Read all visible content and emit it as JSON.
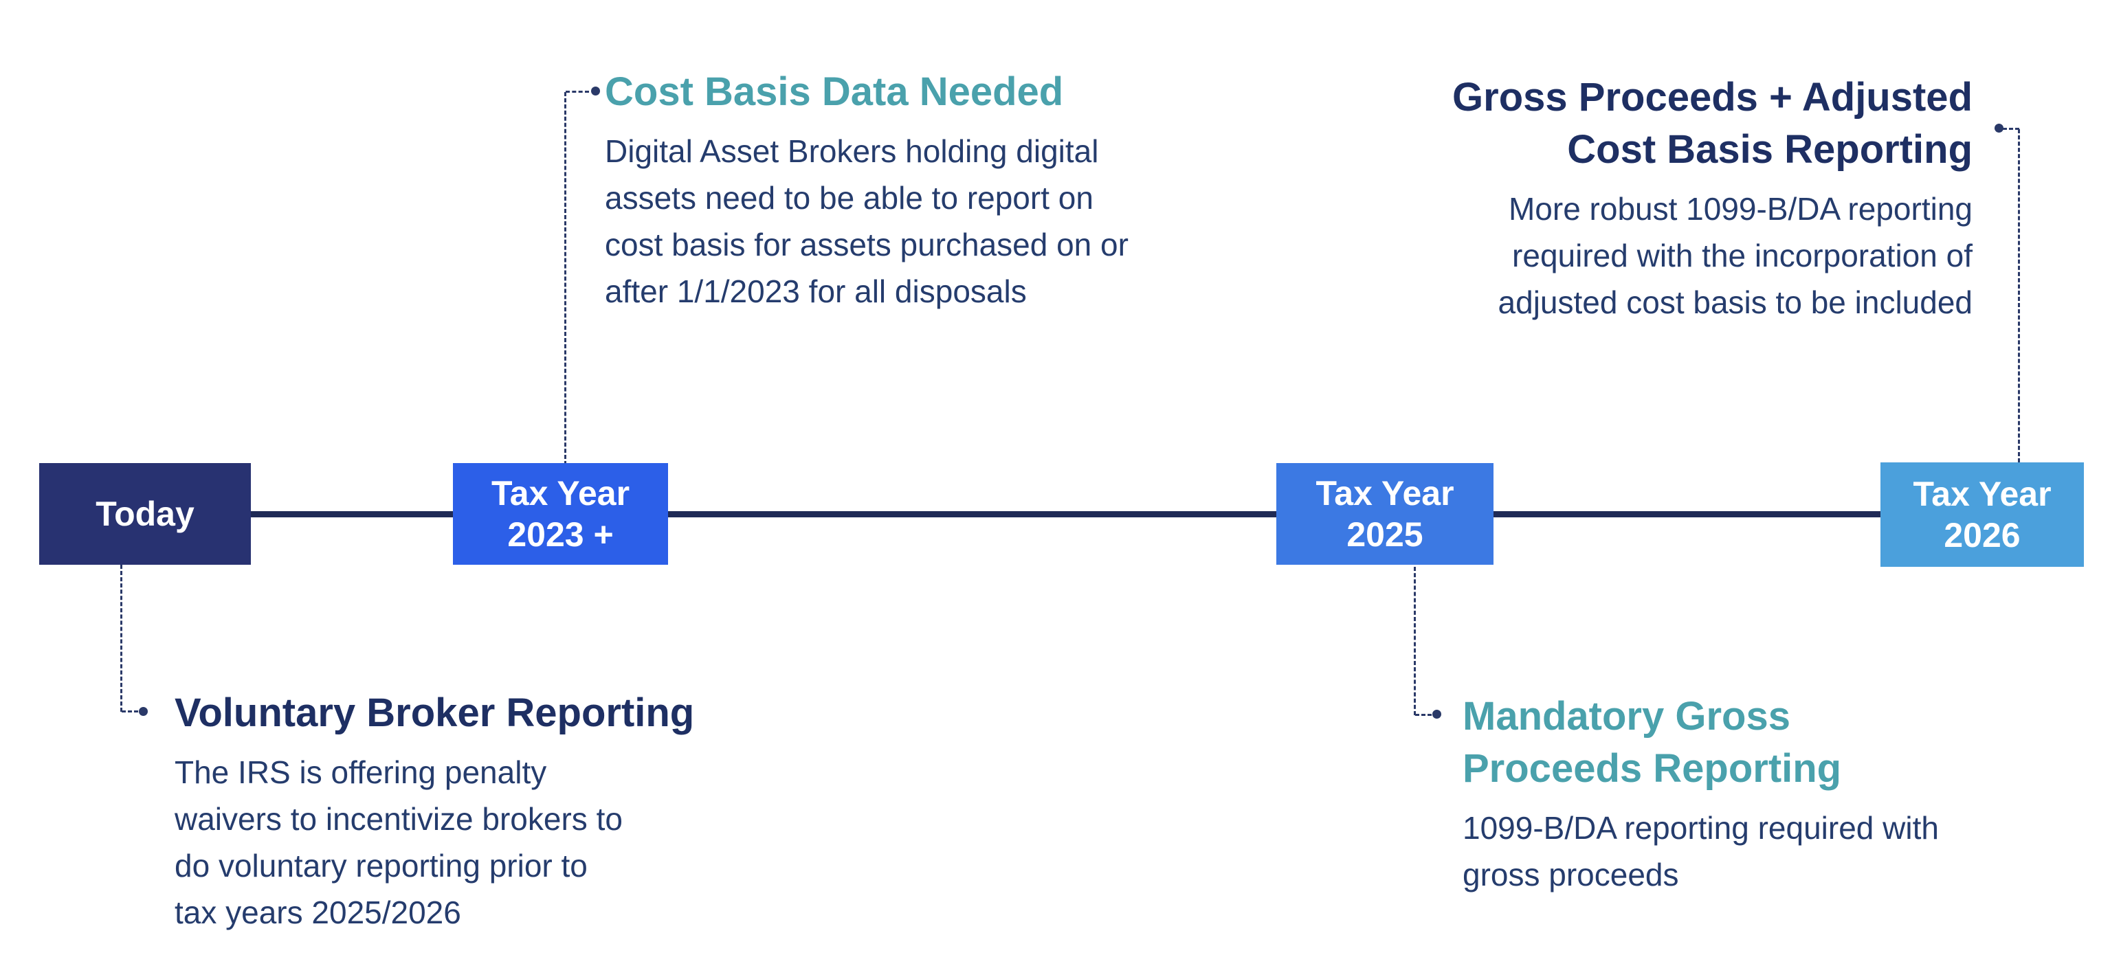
{
  "page": {
    "background": "#ffffff",
    "axis_color": "#1f2a56",
    "connector_color": "#2a3968",
    "body_text_color": "#253c6d",
    "navy_heading_color": "#1e2f63",
    "teal_heading_color": "#4aa1ac"
  },
  "timeline": {
    "nodes": [
      {
        "label_line1": "Today",
        "label_line2": "",
        "color": "#283271"
      },
      {
        "label_line1": "Tax Year",
        "label_line2": "2023 +",
        "color": "#2c5fe8"
      },
      {
        "label_line1": "Tax Year",
        "label_line2": "2025",
        "color": "#3c79e3"
      },
      {
        "label_line1": "Tax Year",
        "label_line2": "2026",
        "color": "#4ba0dc"
      }
    ]
  },
  "annotations": {
    "cost_basis": {
      "heading": "Cost Basis Data Needed",
      "heading_color": "#4aa1ac",
      "body_lines": [
        "Digital Asset Brokers holding digital",
        "assets need to be able to report on",
        "cost basis for assets purchased on or",
        "after 1/1/2023 for all disposals"
      ]
    },
    "gross_adjusted": {
      "heading_line1": "Gross Proceeds + Adjusted",
      "heading_line2": "Cost Basis Reporting",
      "heading_color": "#1e2f63",
      "body_lines": [
        "More robust 1099-B/DA reporting",
        "required with the incorporation of",
        "adjusted cost basis to be included"
      ]
    },
    "voluntary": {
      "heading": "Voluntary Broker Reporting",
      "heading_color": "#1e2f63",
      "body_lines": [
        "The IRS is offering penalty",
        "waivers to incentivize brokers to",
        "do voluntary reporting prior to",
        "tax years 2025/2026"
      ]
    },
    "mandatory": {
      "heading_line1": "Mandatory Gross",
      "heading_line2": "Proceeds Reporting",
      "heading_color": "#4aa1ac",
      "body_lines": [
        "1099-B/DA reporting required with",
        "gross proceeds"
      ]
    }
  }
}
